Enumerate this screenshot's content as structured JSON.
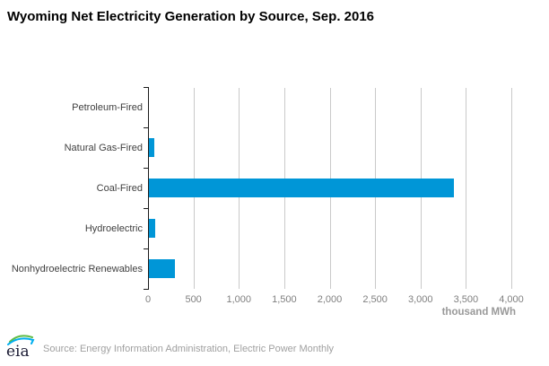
{
  "title": "Wyoming Net Electricity Generation by Source, Sep. 2016",
  "chart_data": {
    "type": "bar",
    "orientation": "horizontal",
    "title": "Wyoming Net Electricity Generation by Source, Sep. 2016",
    "categories": [
      "Petroleum-Fired",
      "Natural Gas-Fired",
      "Coal-Fired",
      "Hydroelectric",
      "Nonhydroelectric Renewables"
    ],
    "values": [
      0,
      60,
      3360,
      65,
      285
    ],
    "xlabel": "thousand MWh",
    "ylabel": "",
    "xlim": [
      0,
      4000
    ],
    "xticks": [
      0,
      500,
      1000,
      1500,
      2000,
      2500,
      3000,
      3500,
      4000
    ],
    "xtick_labels": [
      "0",
      "500",
      "1,000",
      "1,500",
      "2,000",
      "2,500",
      "3,000",
      "3,500",
      "4,000"
    ],
    "grid": "vertical",
    "legend": "none",
    "bar_color": "#0096D7"
  },
  "colors": {
    "bar": "#0096D7",
    "gridline": "#c9c9c9",
    "axis": "#1a1a1a",
    "tick_label": "#7f7f7f",
    "category_label": "#3f3f3f",
    "unit_label": "#999999",
    "source_text": "#a0a0a0",
    "logo_green": "#5DBB46",
    "logo_blue": "#00AEEF",
    "logo_text": "#1a1a33"
  },
  "footer": {
    "logo_text": "eia",
    "source": "Source: Energy Information Administration, Electric Power Monthly"
  }
}
